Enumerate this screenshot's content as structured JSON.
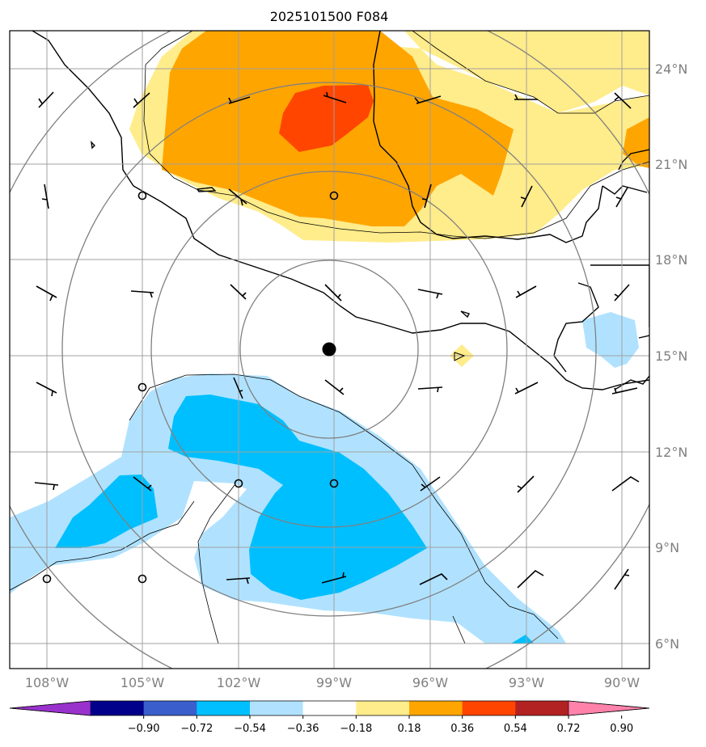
{
  "title": "2025101500 F084",
  "map": {
    "lat_labels": [
      "24°N",
      "21°N",
      "18°N",
      "15°N",
      "12°N",
      "9°N",
      "6°N"
    ],
    "lon_labels": [
      "108°W",
      "105°W",
      "102°W",
      "99°W",
      "96°W",
      "93°W",
      "90°W"
    ],
    "center_marker": "storm-center"
  },
  "colorbar": {
    "colors": [
      "#9932CC",
      "#00008B",
      "#3A5FCD",
      "#00BFFF",
      "#B0E2FF",
      "#FFFFFF",
      "#FFEC8B",
      "#FFA500",
      "#FF4500",
      "#B22222",
      "#FF82AB"
    ],
    "tick_labels": [
      "−0.90",
      "−0.72",
      "−0.54",
      "−0.36",
      "−0.18",
      "0.18",
      "0.36",
      "0.54",
      "0.72",
      "0.90"
    ]
  }
}
